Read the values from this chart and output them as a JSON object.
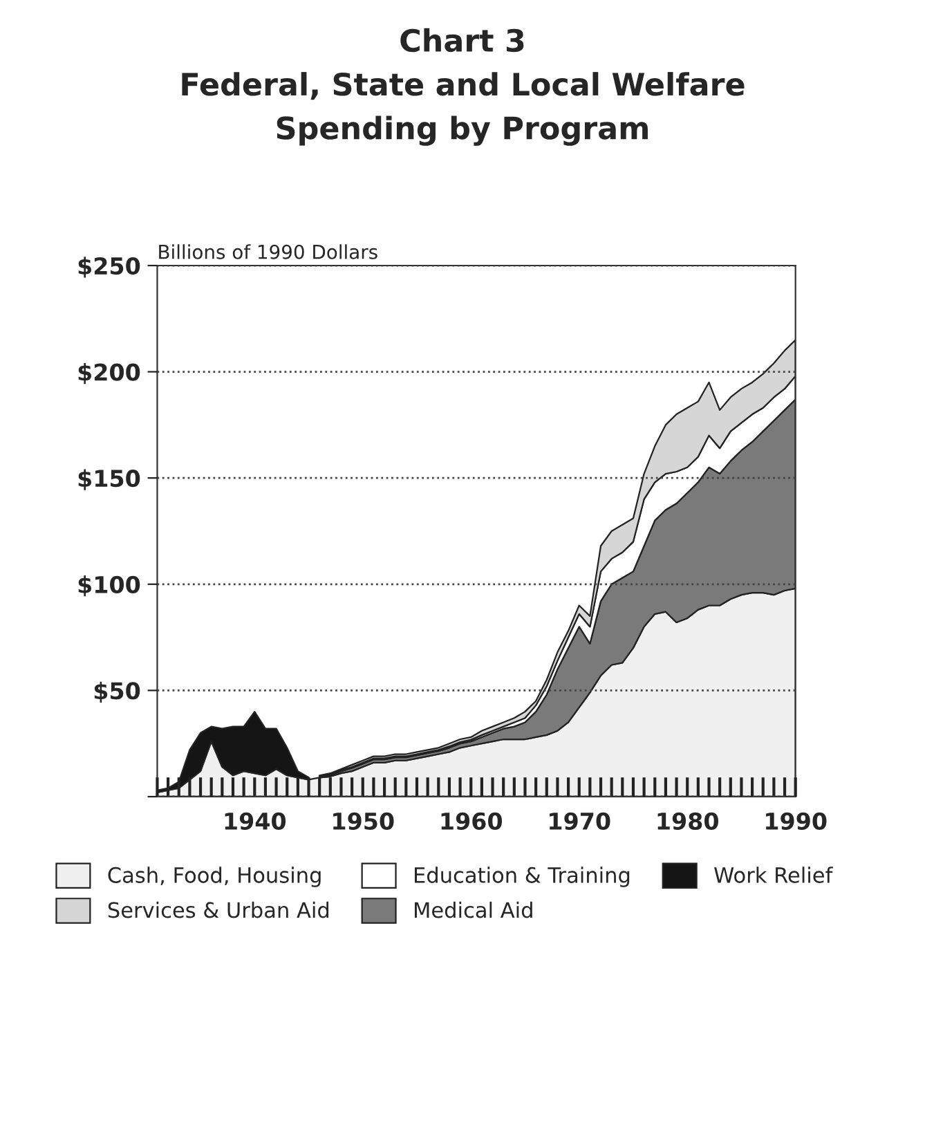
{
  "chart_data": {
    "type": "area",
    "stacked": true,
    "title": "Chart 3\nFederal, State and Local Welfare\nSpending by Program",
    "ylabel": "Billions of 1990 Dollars",
    "x": [
      1931,
      1932,
      1933,
      1934,
      1935,
      1936,
      1937,
      1938,
      1939,
      1940,
      1941,
      1942,
      1943,
      1944,
      1945,
      1946,
      1947,
      1948,
      1949,
      1950,
      1951,
      1952,
      1953,
      1954,
      1955,
      1956,
      1957,
      1958,
      1959,
      1960,
      1961,
      1962,
      1963,
      1964,
      1965,
      1966,
      1967,
      1968,
      1969,
      1970,
      1971,
      1972,
      1973,
      1974,
      1975,
      1976,
      1977,
      1978,
      1979,
      1980,
      1981,
      1982,
      1983,
      1984,
      1985,
      1986,
      1987,
      1988,
      1989,
      1990
    ],
    "series": [
      {
        "name": "Cash, Food, Housing",
        "color": "#f0f0f0",
        "values": [
          2,
          3,
          4,
          8,
          12,
          26,
          14,
          10,
          12,
          11,
          10,
          13,
          10,
          9,
          8,
          9,
          9.5,
          11,
          12,
          14,
          16,
          16,
          17,
          17,
          18,
          19,
          20,
          21,
          23,
          24,
          25,
          26,
          27,
          27,
          27,
          28,
          29,
          31,
          35,
          42,
          49,
          57,
          62,
          63,
          70,
          80,
          86,
          87,
          82,
          84,
          88,
          90,
          90,
          93,
          95,
          96,
          96,
          95,
          97,
          98
        ]
      },
      {
        "name": "Medical Aid",
        "color": "#7a7a7a",
        "values": [
          null,
          null,
          null,
          null,
          null,
          null,
          null,
          null,
          null,
          null,
          null,
          null,
          null,
          null,
          null,
          0.5,
          0.7,
          1,
          1.5,
          1.5,
          1.5,
          1.5,
          1.5,
          1.5,
          1.5,
          1.5,
          1.5,
          2,
          2,
          2,
          3,
          4,
          5,
          6,
          8,
          12,
          19,
          29,
          35,
          38,
          23,
          35,
          38,
          40,
          36,
          38,
          44,
          48,
          56,
          59,
          60,
          65,
          62,
          65,
          68,
          71,
          76,
          82,
          85,
          89
        ]
      },
      {
        "name": "Education & Training",
        "color": "#ffffff",
        "values": [
          null,
          null,
          null,
          null,
          null,
          null,
          null,
          null,
          null,
          null,
          null,
          null,
          null,
          null,
          null,
          0.2,
          0.3,
          0.4,
          0.5,
          0.5,
          0.5,
          0.5,
          0.5,
          0.5,
          0.5,
          0.5,
          0.5,
          0.7,
          0.7,
          0.8,
          1,
          1,
          1,
          2,
          2,
          3,
          4,
          4,
          5,
          6,
          8,
          14,
          12,
          12,
          14,
          22,
          18,
          17,
          15,
          12,
          12,
          15,
          12,
          14,
          13,
          13,
          11,
          11,
          10,
          11
        ]
      },
      {
        "name": "Services & Urban Aid",
        "color": "#d6d6d6",
        "values": [
          null,
          null,
          null,
          null,
          null,
          null,
          null,
          null,
          null,
          null,
          null,
          null,
          null,
          null,
          null,
          0.3,
          0.5,
          0.6,
          1,
          1,
          1,
          1,
          1,
          1,
          1,
          1,
          1,
          1.3,
          1.3,
          1.2,
          2,
          2,
          2,
          2,
          3,
          2,
          3,
          4,
          3,
          4,
          5,
          12,
          13,
          13,
          11,
          12,
          17,
          23,
          27,
          28,
          26,
          25,
          18,
          16,
          16,
          15,
          16,
          16,
          18,
          17
        ]
      },
      {
        "name": "Work Relief",
        "color": "#151515",
        "values": [
          1,
          1,
          3,
          14,
          18,
          7,
          18,
          23,
          21,
          29,
          22,
          19,
          13,
          3,
          1,
          null,
          null,
          null,
          null,
          null,
          null,
          null,
          null,
          null,
          null,
          null,
          null,
          null,
          null,
          null,
          null,
          null,
          null,
          null,
          null,
          null,
          null,
          null,
          null,
          null,
          null,
          null,
          null,
          null,
          null,
          null,
          null,
          null,
          null,
          null,
          null,
          null,
          null,
          null,
          null,
          null,
          null,
          null,
          null,
          null
        ]
      }
    ],
    "xlim": [
      1931,
      1990
    ],
    "ylim": [
      0,
      250
    ],
    "xticks": [
      {
        "value": 1931,
        "label": null
      },
      {
        "value": 1932,
        "label": null
      },
      {
        "value": 1933,
        "label": null
      },
      {
        "value": 1934,
        "label": null
      },
      {
        "value": 1935,
        "label": null
      },
      {
        "value": 1936,
        "label": null
      },
      {
        "value": 1937,
        "label": null
      },
      {
        "value": 1938,
        "label": null
      },
      {
        "value": 1939,
        "label": null
      },
      1940,
      {
        "value": 1941,
        "label": null
      },
      {
        "value": 1942,
        "label": null
      },
      {
        "value": 1943,
        "label": null
      },
      {
        "value": 1944,
        "label": null
      },
      {
        "value": 1945,
        "label": null
      },
      {
        "value": 1946,
        "label": null
      },
      {
        "value": 1947,
        "label": null
      },
      {
        "value": 1948,
        "label": null
      },
      {
        "value": 1949,
        "label": null
      },
      1950,
      {
        "value": 1951,
        "label": null
      },
      {
        "value": 1952,
        "label": null
      },
      {
        "value": 1953,
        "label": null
      },
      {
        "value": 1954,
        "label": null
      },
      {
        "value": 1955,
        "label": null
      },
      {
        "value": 1956,
        "label": null
      },
      {
        "value": 1957,
        "label": null
      },
      {
        "value": 1958,
        "label": null
      },
      {
        "value": 1959,
        "label": null
      },
      1960,
      {
        "value": 1961,
        "label": null
      },
      {
        "value": 1962,
        "label": null
      },
      {
        "value": 1963,
        "label": null
      },
      {
        "value": 1964,
        "label": null
      },
      {
        "value": 1965,
        "label": null
      },
      {
        "value": 1966,
        "label": null
      },
      {
        "value": 1967,
        "label": null
      },
      {
        "value": 1968,
        "label": null
      },
      {
        "value": 1969,
        "label": null
      },
      1970,
      {
        "value": 1971,
        "label": null
      },
      {
        "value": 1972,
        "label": null
      },
      {
        "value": 1973,
        "label": null
      },
      {
        "value": 1974,
        "label": null
      },
      {
        "value": 1975,
        "label": null
      },
      {
        "value": 1976,
        "label": null
      },
      {
        "value": 1977,
        "label": null
      },
      {
        "value": 1978,
        "label": null
      },
      {
        "value": 1979,
        "label": null
      },
      1980,
      {
        "value": 1981,
        "label": null
      },
      {
        "value": 1982,
        "label": null
      },
      {
        "value": 1983,
        "label": null
      },
      {
        "value": 1984,
        "label": null
      },
      {
        "value": 1985,
        "label": null
      },
      {
        "value": 1986,
        "label": null
      },
      {
        "value": 1987,
        "label": null
      },
      {
        "value": 1988,
        "label": null
      },
      {
        "value": 1989,
        "label": null
      },
      1990
    ],
    "yticks": [
      {
        "value": 0,
        "label": null
      },
      {
        "value": 50,
        "label": "$50"
      },
      {
        "value": 100,
        "label": "$100"
      },
      {
        "value": 150,
        "label": "$150"
      },
      {
        "value": 200,
        "label": "$200"
      },
      {
        "value": 250,
        "label": "$250"
      }
    ],
    "grid": "y",
    "legend": "bottom"
  }
}
